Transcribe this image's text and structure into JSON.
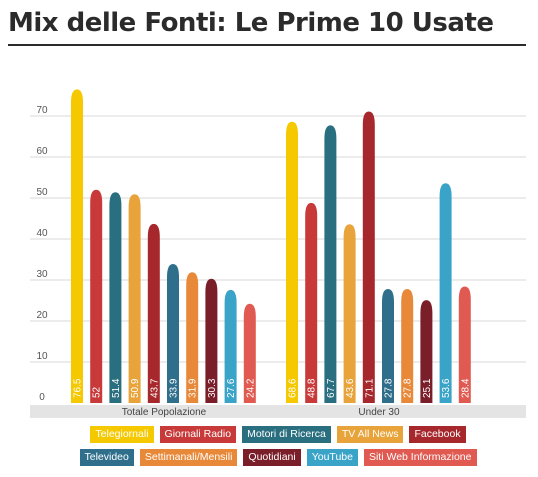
{
  "title": "Mix delle Fonti: Le Prime 10 Usate",
  "chart_data": {
    "type": "bar",
    "title": "Mix delle Fonti: Le Prime 10 Usate",
    "xlabel": "",
    "ylabel": "",
    "ylim": [
      0,
      75
    ],
    "yticks": [
      0,
      10,
      20,
      30,
      40,
      50,
      60,
      70
    ],
    "grid": true,
    "legend_position": "bottom",
    "categories": [
      "Totale Popolazione",
      "Under 30"
    ],
    "series": [
      {
        "name": "Telegiornali",
        "color": "#f5c800",
        "values": [
          76.5,
          68.6
        ],
        "labels": [
          "76.5",
          "68.6"
        ]
      },
      {
        "name": "Giornali Radio",
        "color": "#c83a3a",
        "values": [
          52,
          48.8
        ],
        "labels": [
          "52",
          "48.8"
        ]
      },
      {
        "name": "Motori di Ricerca",
        "color": "#2a6f7f",
        "values": [
          51.4,
          67.7
        ],
        "labels": [
          "51.4",
          "67.7"
        ]
      },
      {
        "name": "TV All News",
        "color": "#e8a43a",
        "values": [
          50.9,
          43.6
        ],
        "labels": [
          "50.9",
          "43.6"
        ]
      },
      {
        "name": "Facebook",
        "color": "#a6282c",
        "values": [
          43.7,
          71.1
        ],
        "labels": [
          "43.7",
          "71.1"
        ]
      },
      {
        "name": "Televideo",
        "color": "#2f6f8c",
        "values": [
          33.9,
          27.8
        ],
        "labels": [
          "33.9",
          "27.8"
        ]
      },
      {
        "name": "Settimanali/Mensili",
        "color": "#e8893a",
        "values": [
          31.9,
          27.8
        ],
        "labels": [
          "31.9",
          "27.8"
        ]
      },
      {
        "name": "Quotidiani",
        "color": "#7a1f2a",
        "values": [
          30.3,
          25.1
        ],
        "labels": [
          "30.3",
          "25.1"
        ]
      },
      {
        "name": "YouTube",
        "color": "#3aa3c8",
        "values": [
          27.6,
          53.6
        ],
        "labels": [
          "27.6",
          "53.6"
        ]
      },
      {
        "name": "Siti Web Informazione",
        "color": "#e05a52",
        "values": [
          24.2,
          28.4
        ],
        "labels": [
          "24.2",
          "28.4"
        ]
      }
    ]
  }
}
